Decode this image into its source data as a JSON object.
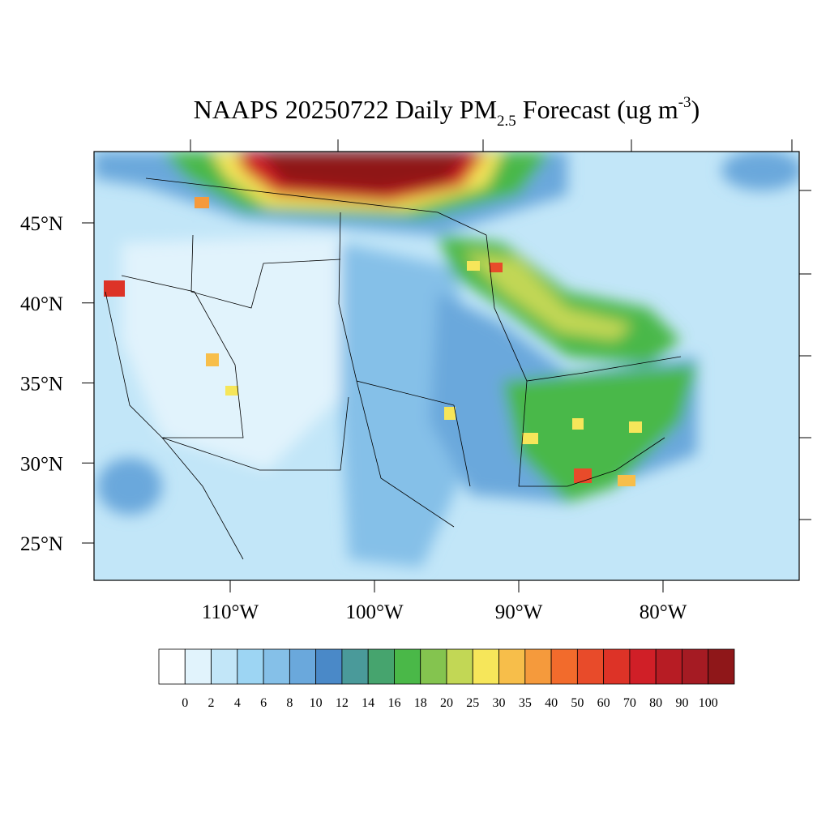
{
  "map": {
    "title": {
      "main": "NAAPS 20250722 Daily PM",
      "sub": "2.5",
      "mid": " Forecast (ug m",
      "sup": "-3",
      "end": ")"
    },
    "lat_ticks": [
      {
        "value": 45,
        "label": "45°N"
      },
      {
        "value": 40,
        "label": "40°N"
      },
      {
        "value": 35,
        "label": "35°N"
      },
      {
        "value": 30,
        "label": "30°N"
      },
      {
        "value": 25,
        "label": "25°N"
      }
    ],
    "lon_ticks": [
      {
        "value": -110,
        "label": "110°W"
      },
      {
        "value": -100,
        "label": "100°W"
      },
      {
        "value": -90,
        "label": "90°W"
      },
      {
        "value": -80,
        "label": "80°W"
      }
    ],
    "colorbar": {
      "levels": [
        0,
        2,
        4,
        6,
        8,
        10,
        12,
        14,
        16,
        18,
        20,
        25,
        30,
        35,
        40,
        50,
        60,
        70,
        80,
        90,
        100
      ],
      "colors": [
        "#ffffff",
        "#e1f3fc",
        "#c2e6f8",
        "#9dd5f3",
        "#85c0e8",
        "#6aa8dc",
        "#4a89c8",
        "#4a9a9a",
        "#46a46e",
        "#4ab848",
        "#84c44f",
        "#c2d755",
        "#f6e65a",
        "#f7be4a",
        "#f59a3c",
        "#f26b2c",
        "#e84b2a",
        "#dd3327",
        "#d01f27",
        "#b71c24",
        "#a51b23",
        "#8f1719"
      ]
    }
  }
}
